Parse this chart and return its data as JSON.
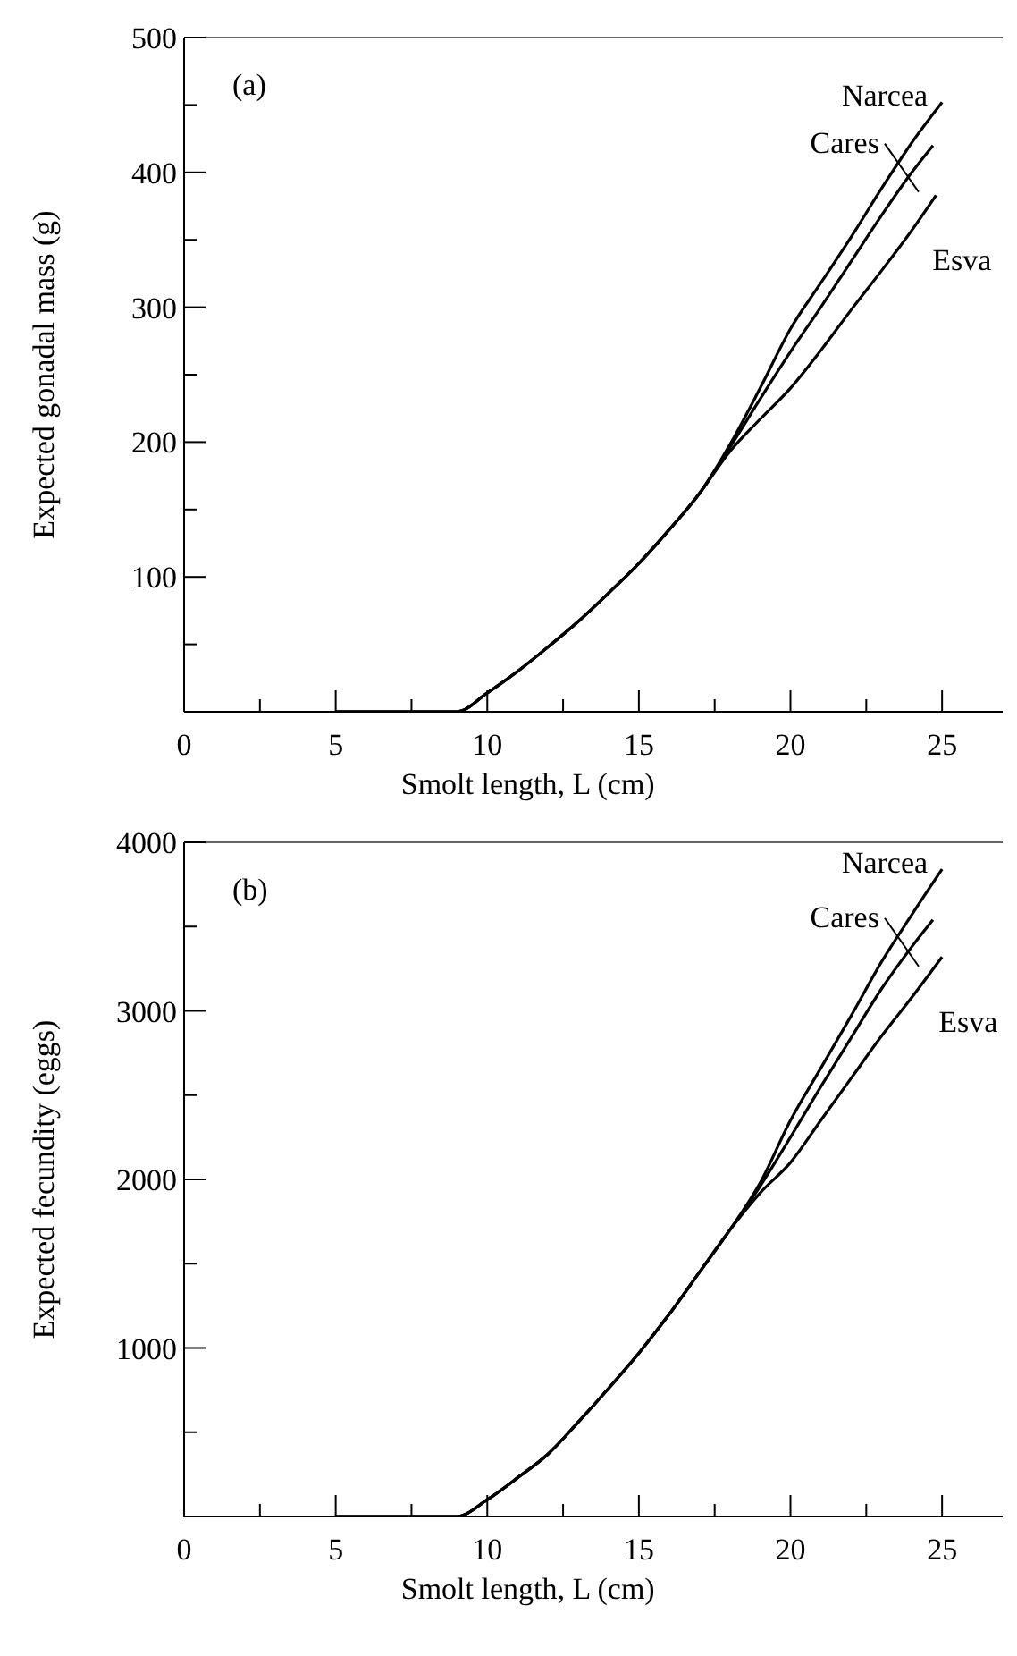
{
  "chart_data": [
    {
      "type": "line",
      "annotations": [
        "(a)"
      ],
      "xlabel": "Smolt length, L (cm)",
      "ylabel": "Expected gonadal mass (g)",
      "xlim": [
        0,
        27
      ],
      "ylim": [
        0,
        500
      ],
      "xticks": [
        0,
        {
          "value": 2.5,
          "label": null
        },
        5,
        {
          "value": 7.5,
          "label": null
        },
        10,
        {
          "value": 12.5,
          "label": null
        },
        15,
        {
          "value": 17.5,
          "label": null
        },
        20,
        {
          "value": 22.5,
          "label": null
        },
        25
      ],
      "yticks": [
        {
          "value": 50,
          "label": null
        },
        100,
        {
          "value": 150,
          "label": null
        },
        200,
        {
          "value": 250,
          "label": null
        },
        300,
        {
          "value": 350,
          "label": null
        },
        400,
        {
          "value": 450,
          "label": null
        },
        500
      ],
      "marker": "none",
      "line_style": "solid",
      "series": [
        {
          "name": "Narcea",
          "color": "#000000",
          "x": [
            5,
            9,
            10,
            11,
            12,
            13,
            14,
            15,
            16,
            17,
            18,
            19,
            20,
            21,
            22,
            23,
            24,
            25
          ],
          "values": [
            0,
            0,
            14,
            30,
            48,
            67,
            88,
            110,
            135,
            162,
            198,
            240,
            284,
            318,
            352,
            388,
            422,
            452
          ]
        },
        {
          "name": "Cares",
          "color": "#000000",
          "x": [
            5,
            9,
            10,
            11,
            12,
            13,
            14,
            15,
            16,
            17,
            18,
            19,
            20,
            21,
            22,
            23,
            24,
            24.7
          ],
          "values": [
            0,
            0,
            14,
            30,
            48,
            67,
            88,
            110,
            135,
            162,
            196,
            232,
            267,
            300,
            334,
            368,
            400,
            420
          ]
        },
        {
          "name": "Esva",
          "color": "#000000",
          "x": [
            5,
            9,
            10,
            11,
            12,
            13,
            14,
            15,
            16,
            17,
            18,
            19,
            20,
            21,
            22,
            23,
            24,
            24.8
          ],
          "values": [
            0,
            0,
            14,
            30,
            48,
            67,
            88,
            110,
            135,
            162,
            193,
            217,
            240,
            268,
            298,
            327,
            357,
            383
          ]
        }
      ]
    },
    {
      "type": "line",
      "annotations": [
        "(b)"
      ],
      "xlabel": "Smolt length, L (cm)",
      "ylabel": "Expected fecundity (eggs)",
      "xlim": [
        0,
        27
      ],
      "ylim": [
        0,
        4000
      ],
      "xticks": [
        0,
        {
          "value": 2.5,
          "label": null
        },
        5,
        {
          "value": 7.5,
          "label": null
        },
        10,
        {
          "value": 12.5,
          "label": null
        },
        15,
        {
          "value": 17.5,
          "label": null
        },
        20,
        {
          "value": 22.5,
          "label": null
        },
        25
      ],
      "yticks": [
        {
          "value": 500,
          "label": null
        },
        1000,
        {
          "value": 1500,
          "label": null
        },
        2000,
        {
          "value": 2500,
          "label": null
        },
        3000,
        {
          "value": 3500,
          "label": null
        },
        4000
      ],
      "marker": "none",
      "line_style": "solid",
      "series": [
        {
          "name": "Narcea",
          "color": "#000000",
          "x": [
            5,
            9,
            10,
            11,
            12,
            13,
            14,
            15,
            16,
            17,
            18,
            19,
            20,
            21,
            22,
            23,
            24,
            25
          ],
          "values": [
            0,
            0,
            100,
            230,
            370,
            560,
            760,
            970,
            1200,
            1450,
            1700,
            1980,
            2350,
            2660,
            2970,
            3290,
            3570,
            3840
          ]
        },
        {
          "name": "Cares",
          "color": "#000000",
          "x": [
            5,
            9,
            10,
            11,
            12,
            13,
            14,
            15,
            16,
            17,
            18,
            19,
            20,
            21,
            22,
            23,
            24,
            24.7
          ],
          "values": [
            0,
            0,
            100,
            230,
            370,
            560,
            760,
            970,
            1200,
            1450,
            1700,
            1960,
            2250,
            2550,
            2840,
            3130,
            3380,
            3540
          ]
        },
        {
          "name": "Esva",
          "color": "#000000",
          "x": [
            5,
            9,
            10,
            11,
            12,
            13,
            14,
            15,
            16,
            17,
            18,
            19,
            20,
            21,
            22,
            23,
            24,
            25
          ],
          "values": [
            0,
            0,
            100,
            230,
            370,
            560,
            760,
            970,
            1200,
            1450,
            1700,
            1920,
            2100,
            2350,
            2600,
            2850,
            3080,
            3320
          ]
        }
      ]
    }
  ]
}
